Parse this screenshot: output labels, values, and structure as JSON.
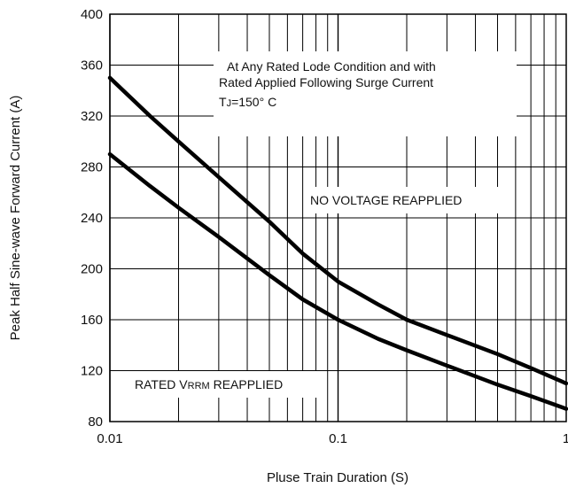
{
  "chart_data": {
    "type": "line",
    "xlabel": "Pluse Train Duration (S)",
    "ylabel": "Peak Half Sine-wave Forward Current (A)",
    "xscale": "log",
    "xlim": [
      0.01,
      1
    ],
    "ylim": [
      80,
      400
    ],
    "x_ticks": [
      "0.01",
      "0.1",
      "1"
    ],
    "y_ticks": [
      "80",
      "120",
      "160",
      "200",
      "240",
      "280",
      "320",
      "360",
      "400"
    ],
    "grid": true,
    "annotation": {
      "line1": "At  Any Rated Lode Condition and with",
      "line2": "Rated Applied Following Surge Current",
      "line3_prefix": "T",
      "line3_sub": "J",
      "line3_suffix": "=150°  C"
    },
    "series": [
      {
        "name": "NO VOLTAGE REAPPLIED",
        "x": [
          0.01,
          0.015,
          0.02,
          0.03,
          0.05,
          0.07,
          0.1,
          0.15,
          0.2,
          0.3,
          0.5,
          0.7,
          1.0
        ],
        "y": [
          350,
          320,
          300,
          272,
          237,
          212,
          190,
          172,
          160,
          148,
          133,
          122,
          110
        ]
      },
      {
        "name_prefix": "RATED V",
        "name_sub": "RRM",
        "name_suffix": " REAPPLIED",
        "x": [
          0.01,
          0.015,
          0.02,
          0.03,
          0.05,
          0.07,
          0.1,
          0.15,
          0.2,
          0.3,
          0.5,
          0.7,
          1.0
        ],
        "y": [
          290,
          265,
          248,
          225,
          195,
          176,
          160,
          145,
          136,
          124,
          109,
          100,
          90
        ]
      }
    ],
    "line_color": "#000000",
    "grid_color": "#000000"
  }
}
